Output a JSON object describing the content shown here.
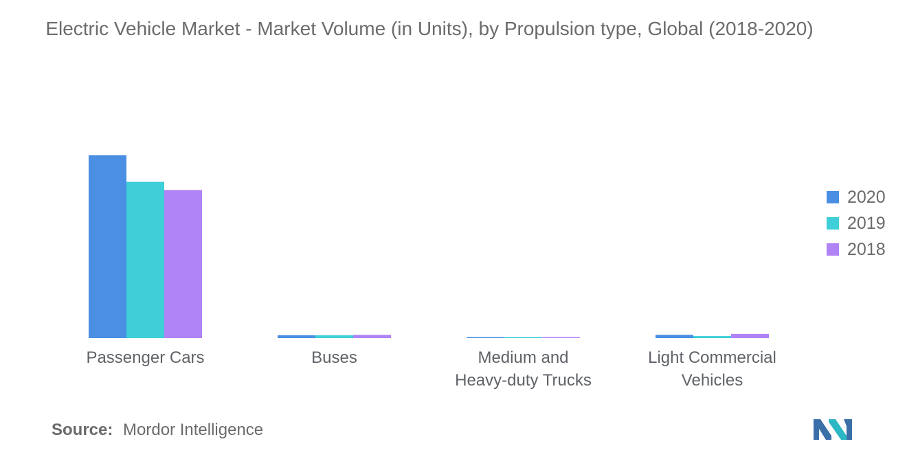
{
  "chart_data": {
    "type": "bar",
    "title": "Electric Vehicle Market - Market Volume (in Units), by Propulsion type, Global (2018-2020)",
    "categories": [
      [
        "Passenger Cars"
      ],
      [
        "Buses"
      ],
      [
        "Medium and",
        "Heavy-duty Trucks"
      ],
      [
        "Light Commercial",
        "Vehicles"
      ]
    ],
    "series": [
      {
        "name": "2020",
        "color": "#4a8fe3",
        "values": [
          100,
          1.6,
          0.4,
          1.8
        ]
      },
      {
        "name": "2019",
        "color": "#3ecfd8",
        "values": [
          85.5,
          1.6,
          0.4,
          1.1
        ]
      },
      {
        "name": "2018",
        "color": "#b083f6",
        "values": [
          81,
          1.8,
          0.3,
          2.3
        ]
      }
    ],
    "ylim": [
      0,
      100
    ],
    "grid": false,
    "legend_position": "right"
  },
  "source": {
    "label": "Source:",
    "text": "Mordor Intelligence"
  },
  "logo": {
    "colors": [
      "#3a6fa8",
      "#2bb8c4"
    ]
  }
}
